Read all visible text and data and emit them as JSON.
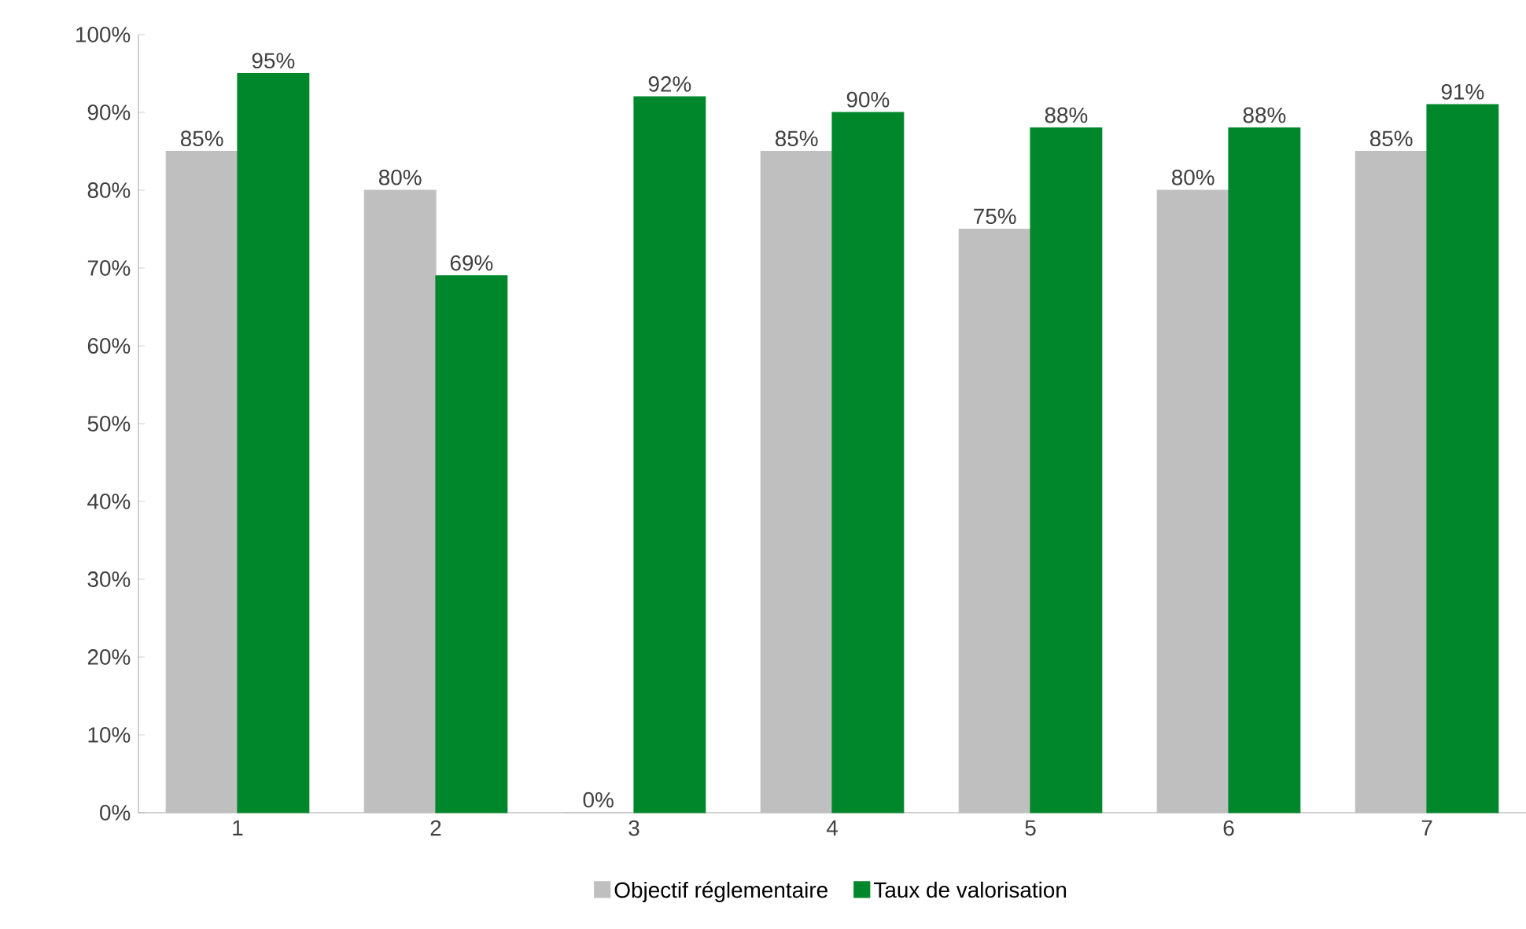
{
  "chart_data": {
    "type": "bar",
    "categories": [
      "1",
      "2",
      "3",
      "4",
      "5",
      "6",
      "7"
    ],
    "series": [
      {
        "name": "Objectif réglementaire",
        "color": "#bfbfbf",
        "values": [
          85,
          80,
          0,
          85,
          75,
          80,
          85
        ],
        "value_labels": [
          "85%",
          "80%",
          "0%",
          "85%",
          "75%",
          "80%",
          "85%"
        ]
      },
      {
        "name": "Taux de valorisation",
        "color": "#00862b",
        "values": [
          95,
          69,
          92,
          90,
          88,
          88,
          91
        ],
        "value_labels": [
          "95%",
          "69%",
          "92%",
          "90%",
          "88%",
          "88%",
          "91%"
        ]
      }
    ],
    "ylim": [
      0,
      100
    ],
    "yticks": [
      {
        "value": 0,
        "label": "0%"
      },
      {
        "value": 10,
        "label": "10%"
      },
      {
        "value": 20,
        "label": "20%"
      },
      {
        "value": 30,
        "label": "30%"
      },
      {
        "value": 40,
        "label": "40%"
      },
      {
        "value": 50,
        "label": "50%"
      },
      {
        "value": 60,
        "label": "60%"
      },
      {
        "value": 70,
        "label": "70%"
      },
      {
        "value": 80,
        "label": "80%"
      },
      {
        "value": 90,
        "label": "90%"
      },
      {
        "value": 100,
        "label": "100%"
      }
    ],
    "grid": false,
    "legend": "bottom"
  }
}
